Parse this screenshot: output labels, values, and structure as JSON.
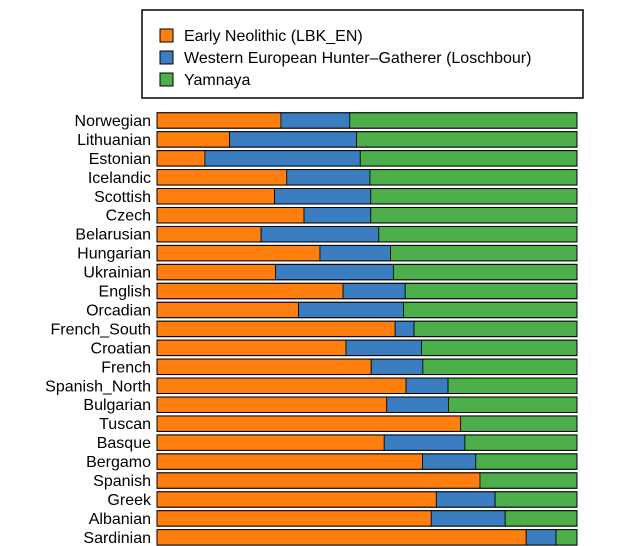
{
  "chart_data": {
    "type": "bar",
    "orientation": "horizontal",
    "stacked": true,
    "normalized": true,
    "xlim": [
      0,
      1
    ],
    "grid": false,
    "legend_position": "top-center",
    "categories": [
      "Norwegian",
      "Lithuanian",
      "Estonian",
      "Icelandic",
      "Scottish",
      "Czech",
      "Belarusian",
      "Hungarian",
      "Ukrainian",
      "English",
      "Orcadian",
      "French_South",
      "Croatian",
      "French",
      "Spanish_North",
      "Bulgarian",
      "Tuscan",
      "Basque",
      "Bergamo",
      "Spanish",
      "Greek",
      "Albanian",
      "Sardinian"
    ],
    "series": [
      {
        "name": "Early Neolithic (LBK_EN)",
        "color": "#ff7f0e",
        "values": [
          0.295,
          0.173,
          0.114,
          0.309,
          0.28,
          0.35,
          0.248,
          0.388,
          0.282,
          0.443,
          0.337,
          0.567,
          0.45,
          0.51,
          0.593,
          0.547,
          0.723,
          0.541,
          0.632,
          0.769,
          0.665,
          0.653,
          0.879
        ]
      },
      {
        "name": "Western European Hunter–Gatherer (Loschbour)",
        "color": "#3a7dc1",
        "values": [
          0.164,
          0.302,
          0.37,
          0.198,
          0.229,
          0.159,
          0.28,
          0.168,
          0.281,
          0.148,
          0.25,
          0.045,
          0.18,
          0.123,
          0.1,
          0.147,
          0.0,
          0.192,
          0.127,
          0.0,
          0.14,
          0.176,
          0.071
        ]
      },
      {
        "name": "Yamnaya",
        "color": "#4daf4a",
        "values": [
          0.541,
          0.525,
          0.516,
          0.493,
          0.491,
          0.491,
          0.472,
          0.444,
          0.437,
          0.409,
          0.413,
          0.388,
          0.37,
          0.367,
          0.307,
          0.306,
          0.277,
          0.267,
          0.241,
          0.231,
          0.195,
          0.171,
          0.05
        ]
      }
    ]
  }
}
